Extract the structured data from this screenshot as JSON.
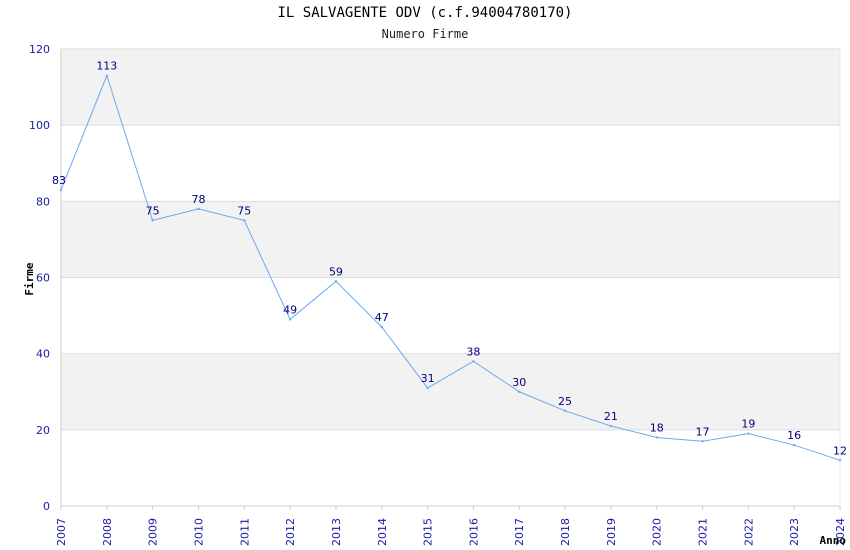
{
  "chart_data": {
    "type": "line",
    "title": "IL SALVAGENTE ODV (c.f.94004780170)",
    "subtitle": "Numero Firme",
    "xlabel": "Anno",
    "ylabel": "Firme",
    "ylim": [
      0,
      120
    ],
    "yticks": [
      0,
      20,
      40,
      60,
      80,
      100,
      120
    ],
    "grid": true,
    "colors": {
      "line": "#6aaaf0",
      "band": "#f2f2f2",
      "tick_text": "#1a1aa6",
      "data_label": "#000080",
      "axis": "#cccccc"
    },
    "categories": [
      "2007",
      "2008",
      "2009",
      "2010",
      "2011",
      "2012",
      "2013",
      "2014",
      "2015",
      "2016",
      "2017",
      "2018",
      "2019",
      "2020",
      "2021",
      "2022",
      "2023",
      "2024"
    ],
    "values": [
      83,
      113,
      75,
      78,
      75,
      49,
      59,
      47,
      31,
      38,
      30,
      25,
      21,
      18,
      17,
      19,
      16,
      12
    ]
  }
}
